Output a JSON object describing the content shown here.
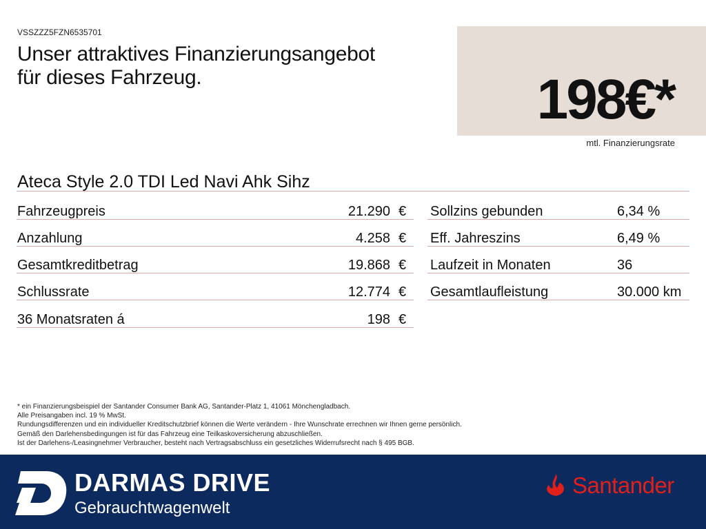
{
  "vin": "VSSZZZ5FZN6535701",
  "headline": [
    "Unser attraktives Finanzierungsangebot",
    "für dieses Fahrzeug."
  ],
  "price": {
    "value": "198€*",
    "label": "mtl. Finanzierungsrate"
  },
  "model": "Ateca Style 2.0 TDI Led Navi Ahk Sihz",
  "left_rows": [
    {
      "label": "Fahrzeugpreis",
      "value": "21.290",
      "unit": "€"
    },
    {
      "label": "Anzahlung",
      "value": "4.258",
      "unit": "€"
    },
    {
      "label": "Gesamtkreditbetrag",
      "value": "19.868",
      "unit": "€"
    },
    {
      "label": "Schlussrate",
      "value": "12.774",
      "unit": "€"
    },
    {
      "label": "36 Monatsraten á",
      "value": "198",
      "unit": "€"
    }
  ],
  "right_rows": [
    {
      "label": "Sollzins gebunden",
      "value": "6,34 %"
    },
    {
      "label": "Eff. Jahreszins",
      "value": "6,49 %"
    },
    {
      "label": "Laufzeit in Monaten",
      "value": "36"
    },
    {
      "label": "Gesamtlaufleistung",
      "value": "30.000 km"
    }
  ],
  "notes": [
    "* ein Finanzierungsbeispiel der Santander Consumer Bank AG, Santander-Platz 1, 41061 Mönchengladbach.",
    "Alle Preisangaben incl. 19 % MwSt.",
    "Rundungsdifferenzen und ein individueller Kreditschutzbrief können die Werte verändern - Ihre Wunschrate errechnen wir Ihnen gerne persönlich.",
    "Gemäß den Darlehensbedingungen ist für das Fahrzeug eine Teilkaskoversicherung abzuschließen.",
    "Ist der Darlehens-/Leasingnehmer Verbraucher, besteht nach Vertragsabschluss ein gesetzliches Widerrufsrecht nach § 495 BGB."
  ],
  "footer": {
    "brand": "DARMAS DRIVE",
    "tagline": "Gebrauchtwagenwelt",
    "partner": "Santander",
    "logo_letter": "D"
  },
  "colors": {
    "footer_bg": "#0d2a5e",
    "santander_red": "#e0201b",
    "price_box": "#e6ded6"
  }
}
